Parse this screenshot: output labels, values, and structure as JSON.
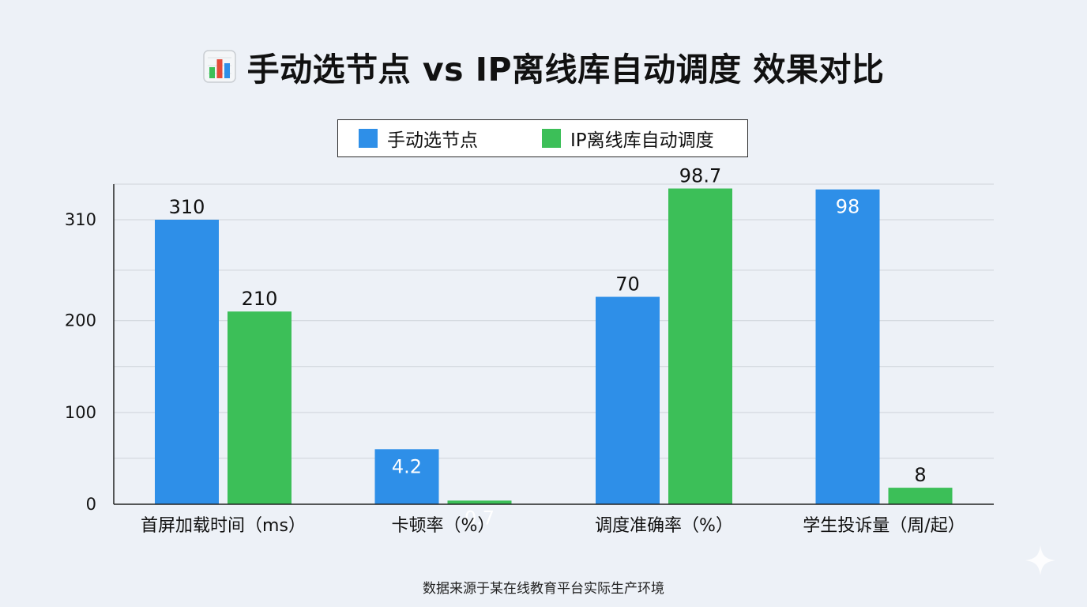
{
  "colors": {
    "background": "#edf1f7",
    "manual": "#2e8fe8",
    "auto": "#3cbf58",
    "grid": "#cfd4da",
    "axis": "#222222"
  },
  "icons": {
    "title_icon": "bar-chart-icon",
    "corner_icon": "sparkle-icon"
  },
  "footnote": "数据来源于某在线教育平台实际生产环境",
  "chart_data": {
    "type": "bar",
    "title": "手动选节点 vs IP离线库自动调度 效果对比",
    "categories": [
      "首屏加载时间（ms）",
      "卡顿率（%）",
      "调度准确率（%）",
      "学生投诉量（周/起）"
    ],
    "series": [
      {
        "name": "手动选节点",
        "values": [
          310,
          4.2,
          70,
          98
        ],
        "labels": [
          "310",
          "4.2",
          "70",
          "98"
        ],
        "display_heights": [
          310,
          60,
          226,
          343
        ]
      },
      {
        "name": "IP离线库自动调度",
        "values": [
          210,
          0.7,
          98.7,
          8
        ],
        "labels": [
          "210",
          "0.7",
          "98.7",
          "8"
        ],
        "display_heights": [
          210,
          4,
          344,
          18
        ]
      }
    ],
    "label_position": [
      "above",
      "above",
      "inside",
      "inside",
      "above",
      "above",
      "inside",
      "above"
    ],
    "yticks": [
      0,
      100,
      200,
      310
    ],
    "ylim": [
      0,
      350
    ],
    "grid": true,
    "legend": "top-center",
    "xlabel": "",
    "ylabel": ""
  }
}
